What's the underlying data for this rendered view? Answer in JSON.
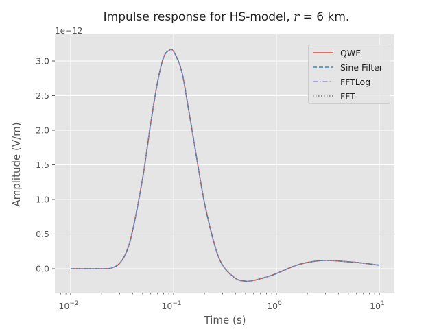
{
  "title": {
    "prefix": "Impulse response for HS-model, ",
    "var": "r",
    "suffix": " = 6 km."
  },
  "axes": {
    "offset_text": "1e−12",
    "xlabel": "Time (s)",
    "ylabel": "Amplitude (V/m)",
    "xticks": [
      {
        "base": "10",
        "exp": "−2",
        "value": 0.01
      },
      {
        "base": "10",
        "exp": "−1",
        "value": 0.1
      },
      {
        "base": "10",
        "exp": "0",
        "value": 1
      },
      {
        "base": "10",
        "exp": "1",
        "value": 10
      }
    ],
    "yticks": [
      "0.0",
      "0.5",
      "1.0",
      "1.5",
      "2.0",
      "2.5",
      "3.0"
    ]
  },
  "legend": {
    "items": [
      {
        "label": "QWE",
        "color": "#E24A33",
        "dash": "solid"
      },
      {
        "label": "Sine Filter",
        "color": "#348ABD",
        "dash": "dashed"
      },
      {
        "label": "FFTLog",
        "color": "#988ED5",
        "dash": "dashdot"
      },
      {
        "label": "FFT",
        "color": "#777777",
        "dash": "dotted"
      }
    ]
  },
  "colors": {
    "axes_bg": "#E5E5E5",
    "grid": "#FFFFFF",
    "text": "#555555"
  },
  "chart_data": {
    "type": "line",
    "title": "Impulse response for HS-model, r = 6 km.",
    "xlabel": "Time (s)",
    "ylabel": "Amplitude (V/m)",
    "y_scale_factor": "1e-12",
    "xscale": "log",
    "xlim": [
      0.0078,
      14
    ],
    "ylim": [
      -0.35,
      3.3
    ],
    "grid": true,
    "legend_position": "upper right",
    "x": [
      0.01,
      0.015,
      0.02,
      0.025,
      0.03,
      0.035,
      0.04,
      0.05,
      0.06,
      0.07,
      0.08,
      0.09,
      0.1,
      0.12,
      0.14,
      0.17,
      0.2,
      0.25,
      0.3,
      0.4,
      0.5,
      0.6,
      0.8,
      1.0,
      1.5,
      2.0,
      3.0,
      5.0,
      7.0,
      10.0
    ],
    "series": [
      {
        "name": "QWE",
        "values": [
          0.0,
          0.0,
          0.0,
          0.01,
          0.08,
          0.25,
          0.55,
          1.3,
          2.1,
          2.7,
          3.05,
          3.15,
          3.14,
          2.85,
          2.3,
          1.55,
          0.95,
          0.35,
          0.05,
          -0.14,
          -0.18,
          -0.17,
          -0.12,
          -0.07,
          0.04,
          0.09,
          0.12,
          0.1,
          0.08,
          0.05
        ]
      },
      {
        "name": "Sine Filter",
        "values": [
          0.0,
          0.0,
          0.0,
          0.01,
          0.08,
          0.25,
          0.55,
          1.3,
          2.1,
          2.7,
          3.05,
          3.15,
          3.14,
          2.85,
          2.3,
          1.55,
          0.95,
          0.35,
          0.05,
          -0.14,
          -0.18,
          -0.17,
          -0.12,
          -0.07,
          0.04,
          0.09,
          0.12,
          0.1,
          0.08,
          0.05
        ]
      },
      {
        "name": "FFTLog",
        "values": [
          0.0,
          0.0,
          0.0,
          0.01,
          0.08,
          0.25,
          0.55,
          1.3,
          2.1,
          2.7,
          3.05,
          3.15,
          3.14,
          2.85,
          2.3,
          1.55,
          0.95,
          0.35,
          0.05,
          -0.14,
          -0.18,
          -0.17,
          -0.12,
          -0.07,
          0.04,
          0.09,
          0.12,
          0.1,
          0.08,
          0.05
        ]
      },
      {
        "name": "FFT",
        "values": [
          0.0,
          0.0,
          0.0,
          0.01,
          0.08,
          0.25,
          0.55,
          1.3,
          2.1,
          2.7,
          3.05,
          3.15,
          3.14,
          2.85,
          2.3,
          1.55,
          0.95,
          0.35,
          0.05,
          -0.14,
          -0.18,
          -0.17,
          -0.12,
          -0.07,
          0.04,
          0.09,
          0.12,
          0.1,
          0.08,
          0.05
        ]
      }
    ]
  }
}
